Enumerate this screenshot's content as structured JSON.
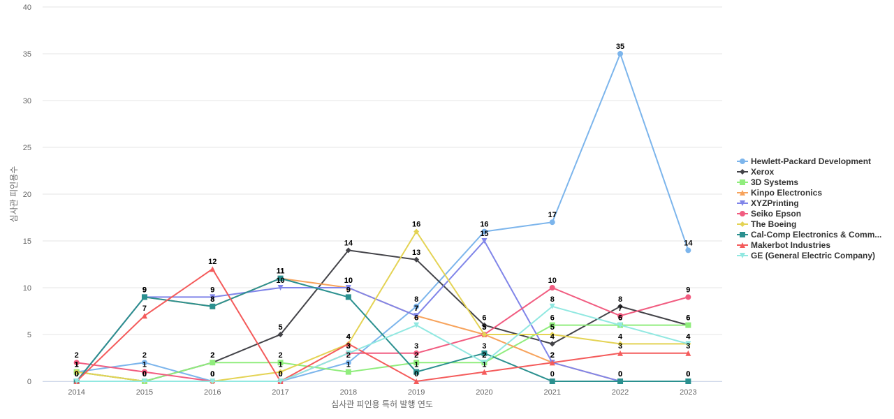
{
  "chart_data": {
    "type": "line",
    "title": "",
    "xlabel": "심사관 피인용 특허 발행 연도",
    "ylabel": "심사관 피인용수",
    "x": [
      "2014",
      "2015",
      "2016",
      "2017",
      "2018",
      "2019",
      "2020",
      "2021",
      "2022",
      "2023"
    ],
    "ylim": [
      0,
      40
    ],
    "yticks": [
      0,
      5,
      10,
      15,
      20,
      25,
      30,
      35,
      40
    ],
    "grid": true,
    "legend_position": "right",
    "series": [
      {
        "name": "Hewlett-Packard Development",
        "color": "#7cb5ec",
        "marker": "circle",
        "values": [
          1,
          2,
          0,
          0,
          2,
          8,
          16,
          17,
          35,
          14
        ]
      },
      {
        "name": "Xerox",
        "color": "#434348",
        "marker": "diamond",
        "values": [
          1,
          0,
          2,
          5,
          14,
          13,
          6,
          4,
          8,
          6
        ]
      },
      {
        "name": "3D Systems",
        "color": "#90ed7d",
        "marker": "square",
        "values": [
          1,
          0,
          2,
          2,
          1,
          2,
          2,
          6,
          6,
          6
        ]
      },
      {
        "name": "Kinpo Electronics",
        "color": "#f7a35c",
        "marker": "triangle",
        "values": [
          0,
          9,
          8,
          11,
          10,
          7,
          5,
          2,
          0,
          0
        ]
      },
      {
        "name": "XYZPrinting",
        "color": "#8085e9",
        "marker": "triangle-down",
        "values": [
          0,
          9,
          9,
          10,
          10,
          7,
          15,
          2,
          0,
          0
        ]
      },
      {
        "name": "Seiko Epson",
        "color": "#f15c80",
        "marker": "circle",
        "values": [
          2,
          1,
          0,
          0,
          3,
          3,
          5,
          10,
          7,
          9
        ]
      },
      {
        "name": "The Boeing",
        "color": "#e4d354",
        "marker": "diamond",
        "values": [
          1,
          0,
          0,
          1,
          4,
          16,
          5,
          5,
          4,
          4
        ]
      },
      {
        "name": "Cal-Comp Electronics & Comm...",
        "color": "#2b908f",
        "marker": "square",
        "values": [
          0,
          9,
          8,
          11,
          9,
          1,
          3,
          0,
          0,
          0
        ]
      },
      {
        "name": "Makerbot Industries",
        "color": "#f45b5b",
        "marker": "triangle",
        "values": [
          0,
          7,
          12,
          0,
          4,
          0,
          1,
          2,
          3,
          3
        ]
      },
      {
        "name": "GE (General Electric Company)",
        "color": "#91e8e1",
        "marker": "triangle-down",
        "values": [
          0,
          0,
          0,
          0,
          3,
          6,
          2,
          8,
          6,
          4
        ]
      }
    ]
  }
}
